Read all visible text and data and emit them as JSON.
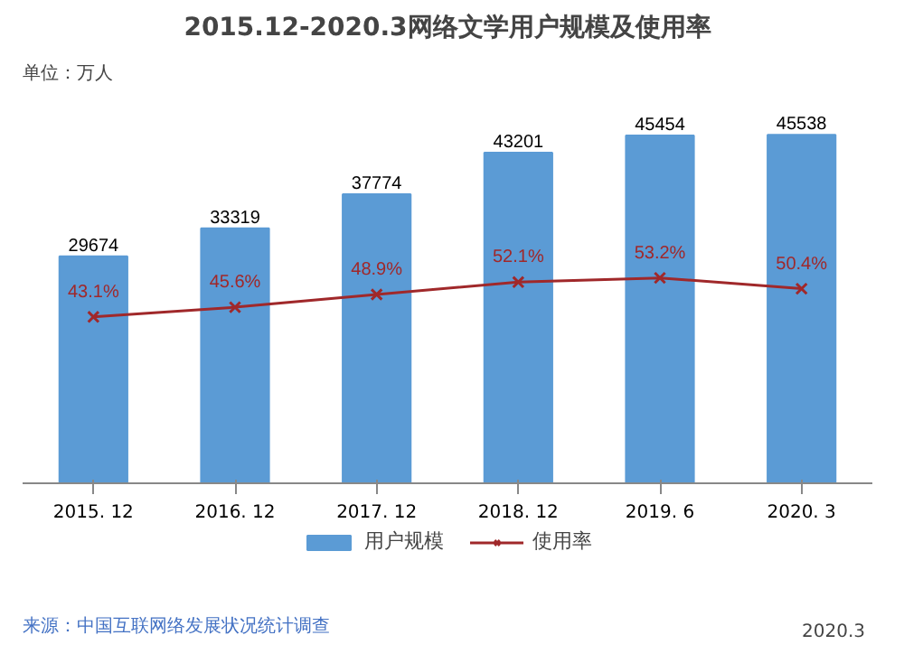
{
  "chart_data": {
    "type": "bar",
    "title": "2015.12-2020.3网络文学用户规模及使用率",
    "categories": [
      "2015. 12",
      "2016. 12",
      "2017. 12",
      "2018. 12",
      "2019. 6",
      "2020. 3"
    ],
    "series": [
      {
        "name": "用户规模",
        "type": "bar",
        "color": "#5b9bd5",
        "values": [
          29674,
          33319,
          37774,
          43201,
          45454,
          45538
        ],
        "value_labels": [
          "29674",
          "33319",
          "37774",
          "43201",
          "45454",
          "45538"
        ]
      },
      {
        "name": "使用率",
        "type": "line",
        "axis": "y2",
        "color": "#a0282a",
        "marker": "cross",
        "values": [
          43.1,
          45.6,
          48.9,
          52.1,
          53.2,
          50.4
        ],
        "value_labels": [
          "43.1%",
          "45.6%",
          "48.9%",
          "52.1%",
          "53.2%",
          "50.4%"
        ]
      }
    ],
    "annotations": [
      "单位：万人",
      "来源：中国互联网络发展状况统计调查",
      "2020.3"
    ],
    "legend": "bottom",
    "grid": false,
    "tick_labels": "x"
  }
}
